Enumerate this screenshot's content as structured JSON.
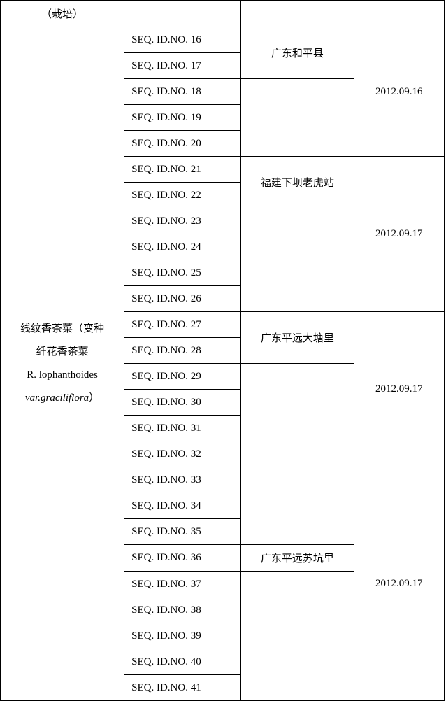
{
  "header_row": {
    "col1": "（栽培）"
  },
  "species_label": {
    "line1": "线纹香茶菜（变种",
    "line2": "纤花香茶菜",
    "line3": "R. lophanthoides",
    "line4_pre": "",
    "line4_italic": "var.graciliflora",
    "line4_post": "）"
  },
  "rows": [
    {
      "seq": "SEQ. ID.NO. 16",
      "loc": "广东和平县",
      "date": "2012.09.16",
      "group": 1,
      "locspan": 2,
      "datespan": 5
    },
    {
      "seq": "SEQ. ID.NO. 17",
      "group": 1,
      "locspan": 0
    },
    {
      "seq": "SEQ. ID.NO. 18",
      "group": 1
    },
    {
      "seq": "SEQ. ID.NO. 19",
      "group": 1
    },
    {
      "seq": "SEQ. ID.NO. 20",
      "group": 1
    },
    {
      "seq": "SEQ. ID.NO. 21",
      "loc": "福建下坝老虎站",
      "date": "2012.09.17",
      "group": 2,
      "locspan": 6,
      "datespan": 6
    },
    {
      "seq": "SEQ. ID.NO. 22",
      "group": 2
    },
    {
      "seq": "SEQ. ID.NO. 23",
      "group": 2
    },
    {
      "seq": "SEQ. ID.NO. 24",
      "group": 2
    },
    {
      "seq": "SEQ. ID.NO. 25",
      "group": 2
    },
    {
      "seq": "SEQ. ID.NO. 26",
      "group": 2
    },
    {
      "seq": "SEQ. ID.NO. 27",
      "loc": "广东平远大塘里",
      "date": "2012.09.17",
      "group": 3,
      "locspan": 6,
      "datespan": 6
    },
    {
      "seq": "SEQ. ID.NO. 28",
      "group": 3
    },
    {
      "seq": "SEQ. ID.NO. 29",
      "group": 3
    },
    {
      "seq": "SEQ. ID.NO. 30",
      "group": 3
    },
    {
      "seq": "SEQ. ID.NO. 31",
      "group": 3
    },
    {
      "seq": "SEQ. ID.NO. 32",
      "group": 3
    },
    {
      "seq": "SEQ. ID.NO. 33",
      "loc": "广东平远苏坑里",
      "date": "2012.09.17",
      "group": 4,
      "locspan": 9,
      "datespan": 9
    },
    {
      "seq": "SEQ. ID.NO. 34",
      "group": 4
    },
    {
      "seq": "SEQ. ID.NO. 35",
      "group": 4
    },
    {
      "seq": "SEQ. ID.NO. 36",
      "group": 4
    },
    {
      "seq": "SEQ. ID.NO. 37",
      "group": 4
    },
    {
      "seq": "SEQ. ID.NO. 38",
      "group": 4
    },
    {
      "seq": "SEQ. ID.NO. 39",
      "group": 4
    },
    {
      "seq": "SEQ. ID.NO. 40",
      "group": 4
    },
    {
      "seq": "SEQ. ID.NO. 41",
      "group": 4
    }
  ]
}
